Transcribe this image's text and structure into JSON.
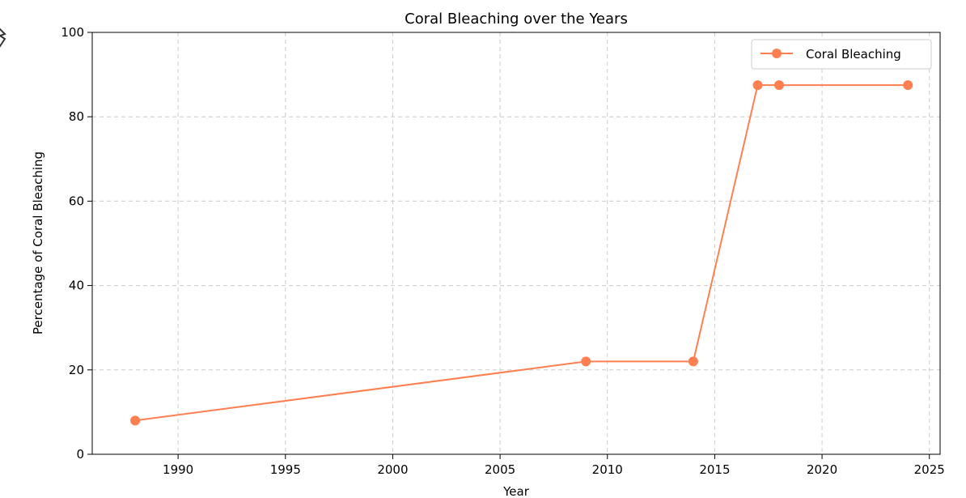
{
  "chart_data": {
    "type": "line",
    "title": "Coral Bleaching over the Years",
    "xlabel": "Year",
    "ylabel": "Percentage of Coral Bleaching",
    "xlim": [
      1986,
      2025.5
    ],
    "ylim": [
      0,
      100
    ],
    "x_ticks": [
      1990,
      1995,
      2000,
      2005,
      2010,
      2015,
      2020,
      2025
    ],
    "y_ticks": [
      0,
      20,
      40,
      60,
      80,
      100
    ],
    "grid": true,
    "legend_position": "top-right",
    "series": [
      {
        "name": "Coral Bleaching",
        "color": "#ff7f50",
        "marker": "circle",
        "x": [
          1988,
          2009,
          2014,
          2017,
          2018,
          2024
        ],
        "y": [
          8,
          22,
          22,
          87.5,
          87.5,
          87.5
        ]
      }
    ]
  }
}
